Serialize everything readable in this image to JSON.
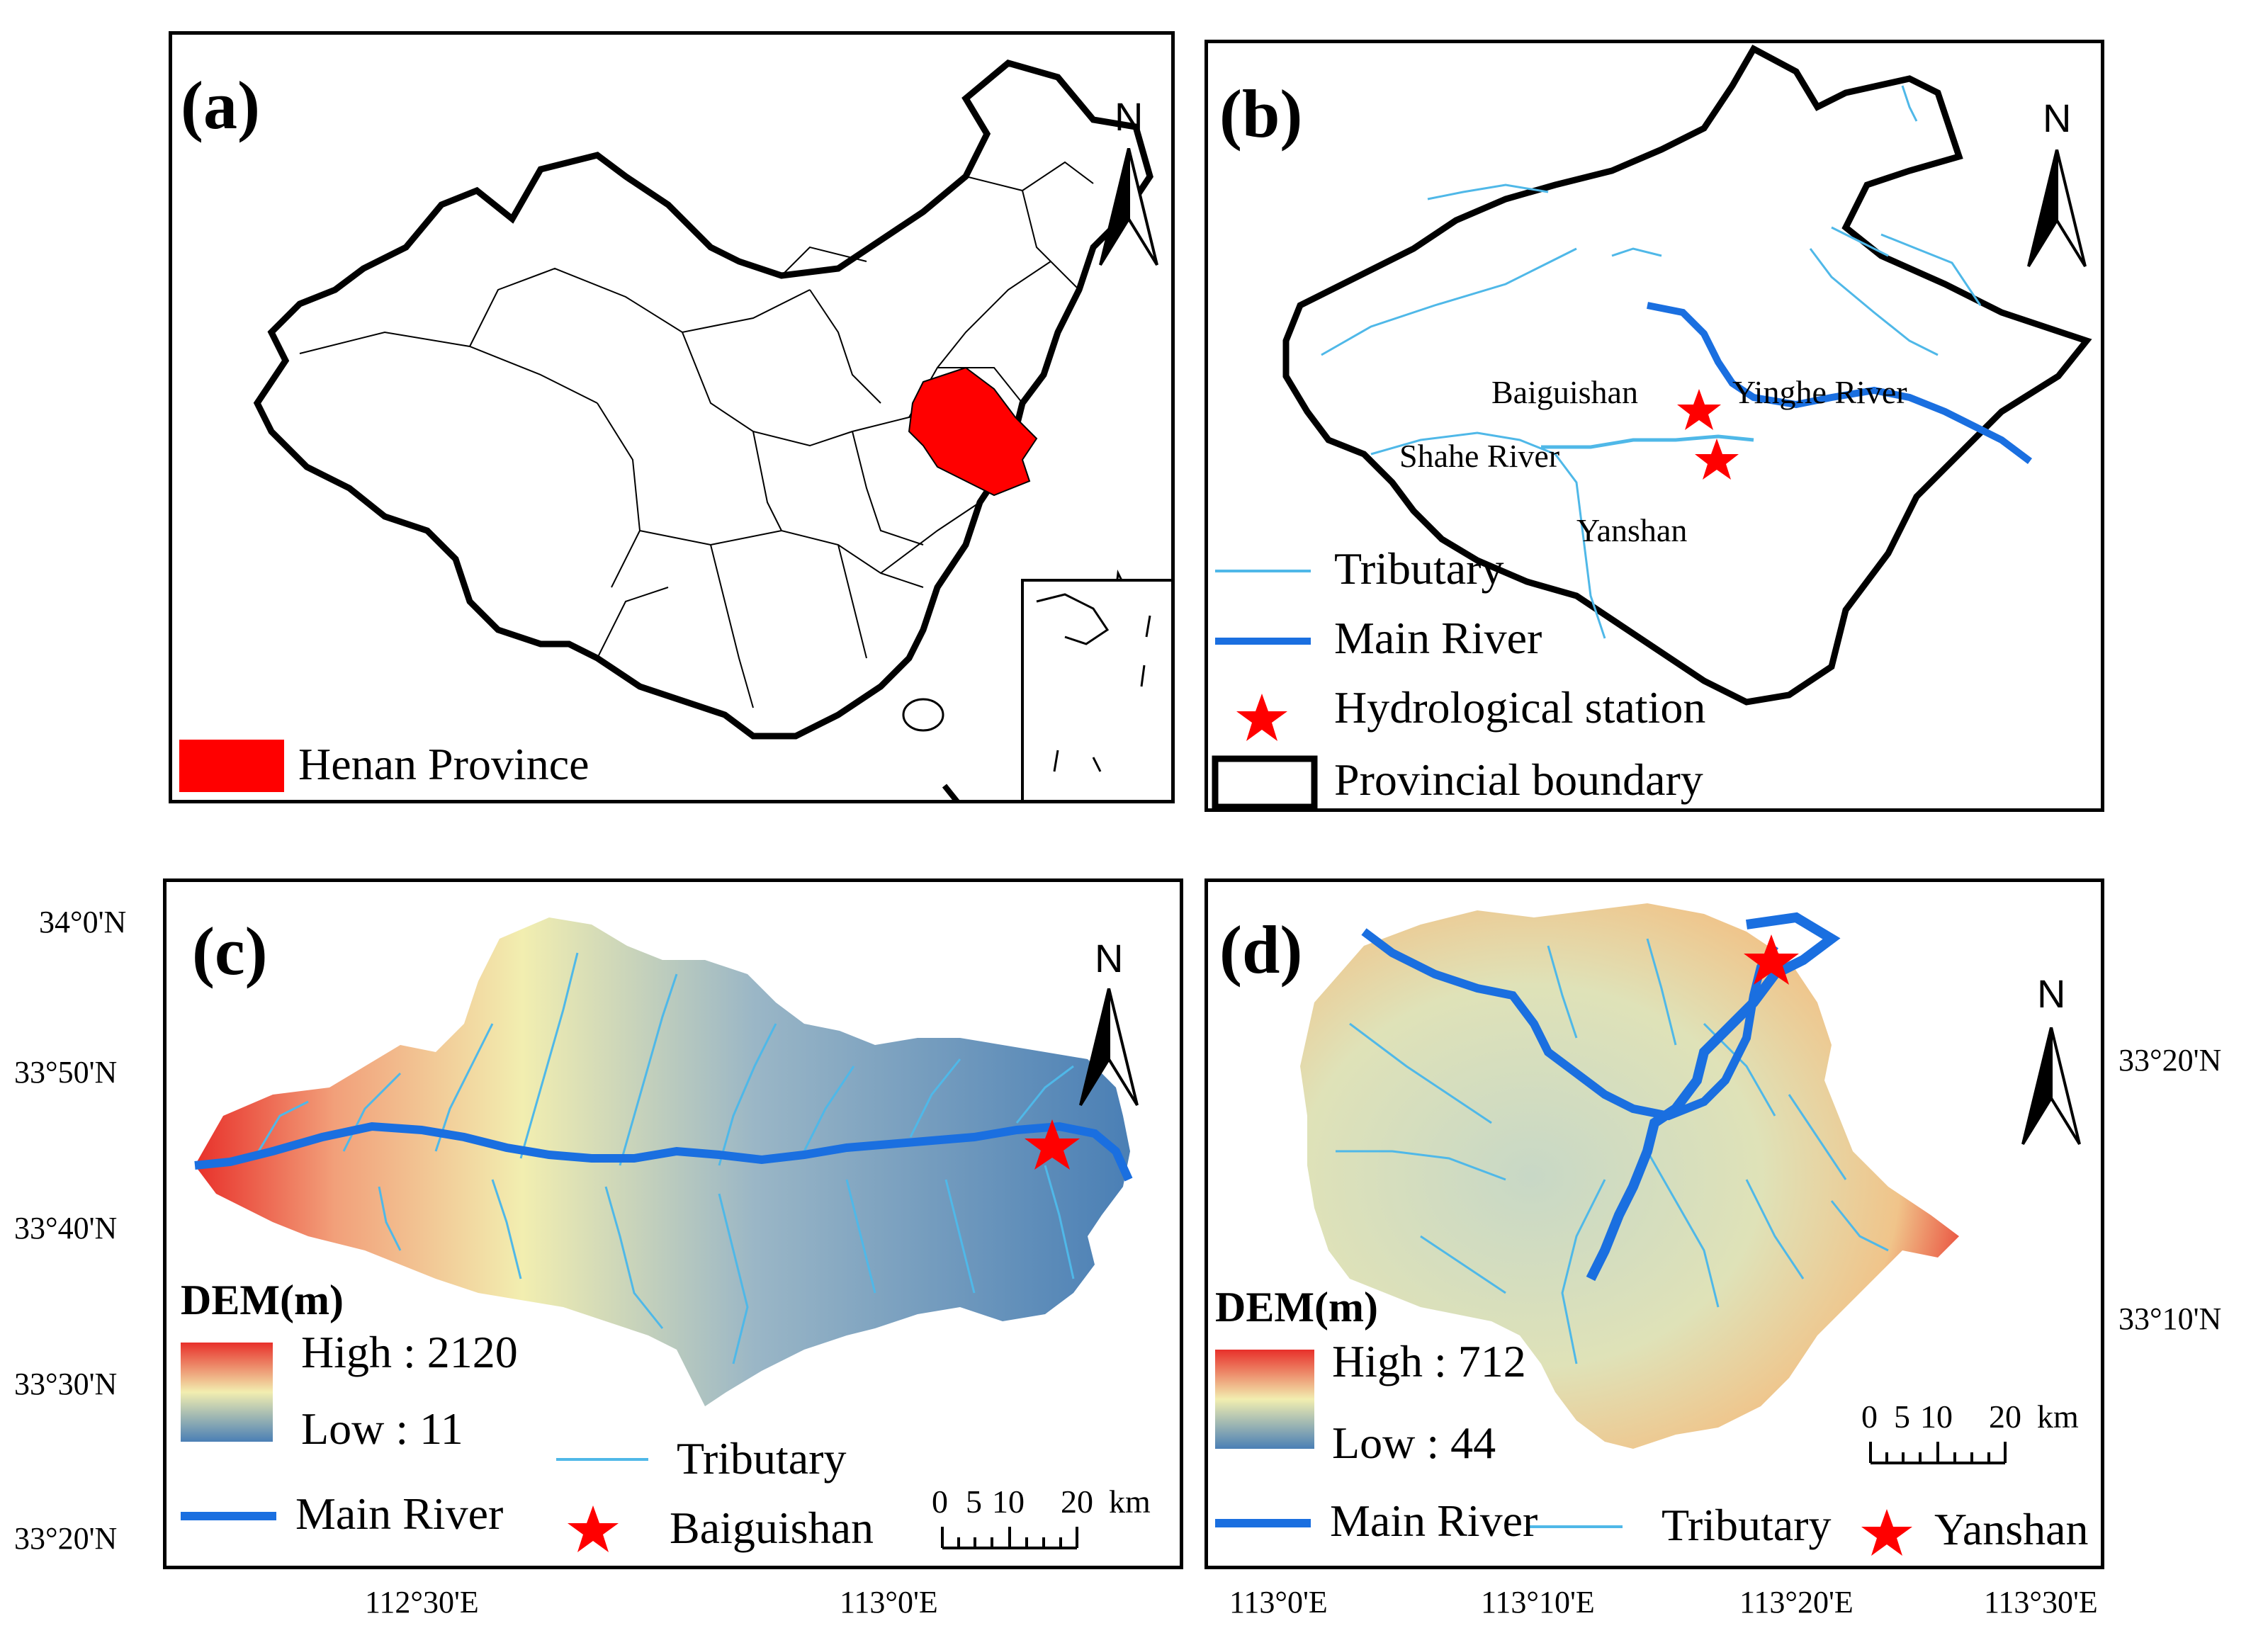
{
  "panels": {
    "a": {
      "label": "(a)",
      "north": "N",
      "legend": "Henan Province"
    },
    "b": {
      "label": "(b)",
      "north": "N",
      "places": [
        "Baiguishan",
        "Yinghe River",
        "Shahe River",
        "Yanshan"
      ],
      "legend": [
        "Tributary",
        "Main River",
        "Hydrological station",
        "Provincial boundary"
      ]
    },
    "c": {
      "label": "(c)",
      "north": "N",
      "dem_title": "DEM(m)",
      "dem_high": "High : 2120",
      "dem_low": "Low : 11",
      "legend_tributary": "Tributary",
      "legend_main": "Main River",
      "legend_station": "Baiguishan",
      "scale_labels": [
        "0",
        "5",
        "10",
        "20",
        "km"
      ],
      "lat_ticks": [
        "34°0'N",
        "33°50'N",
        "33°40'N",
        "33°30'N",
        "33°20'N"
      ],
      "lon_ticks": [
        "112°30'E",
        "113°0'E"
      ]
    },
    "d": {
      "label": "(d)",
      "north": "N",
      "dem_title": "DEM(m)",
      "dem_high": "High : 712",
      "dem_low": "Low : 44",
      "legend_main": "Main River",
      "legend_tributary": "Tributary",
      "legend_station": "Yanshan",
      "scale_labels": [
        "0",
        "5",
        "10",
        "20",
        "km"
      ],
      "lat_ticks": [
        "33°20'N",
        "33°10'N"
      ],
      "lon_ticks": [
        "113°0'E",
        "113°10'E",
        "113°20'E",
        "113°30'E"
      ]
    }
  },
  "colors": {
    "henan": "#ff0000",
    "main_river": "#1a6fe0",
    "tributary": "#4fb8e8",
    "station": "#ff0000",
    "dem_high": "#e8302a",
    "dem_mid": "#f2eeb0",
    "dem_low": "#4a7fb5"
  }
}
